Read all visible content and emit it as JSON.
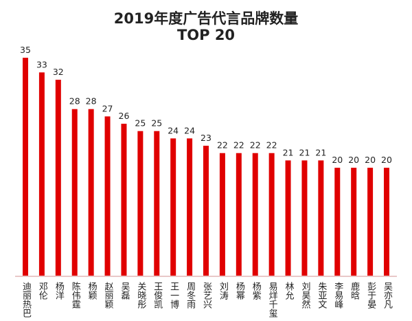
{
  "chart_data": {
    "type": "bar",
    "title": "2019年度广告代言品牌数量",
    "subtitle": "TOP 20",
    "xlabel": "",
    "ylabel": "",
    "grid": false,
    "bar_color": "#e00000",
    "categories": [
      "迪丽热巴",
      "邓伦",
      "杨洋",
      "陈伟霆",
      "杨颖",
      "赵丽颖",
      "吴磊",
      "关晓彤",
      "王俊凯",
      "王一博",
      "周冬雨",
      "张艺兴",
      "刘涛",
      "杨幂",
      "杨紫",
      "易烊千玺",
      "林允",
      "刘昊然",
      "朱亚文",
      "李易峰",
      "鹿晗",
      "彭于晏",
      "吴亦凡"
    ],
    "values": [
      35,
      33,
      32,
      28,
      28,
      27,
      26,
      25,
      25,
      24,
      24,
      23,
      22,
      22,
      22,
      22,
      21,
      21,
      21,
      20,
      20,
      20,
      20
    ]
  }
}
